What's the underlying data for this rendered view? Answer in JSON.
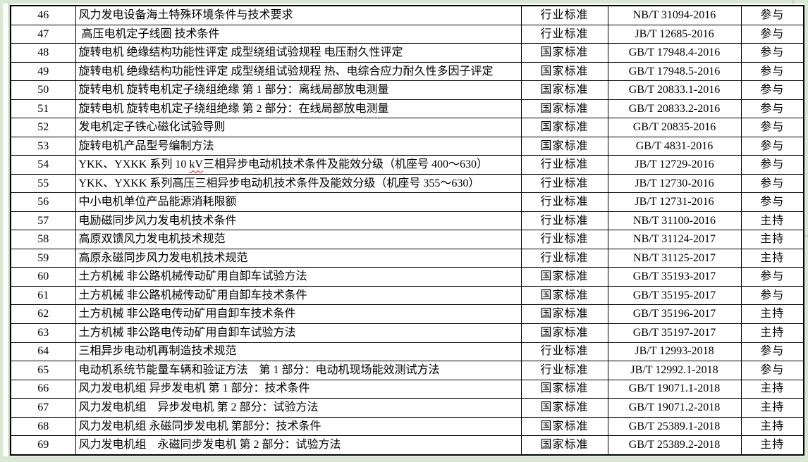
{
  "page": {
    "background_color": "#d9e8d2",
    "grid_line_color": "#b7d1aa",
    "table_border_color": "#000000",
    "spellcheck_underline_color": "#ff0000"
  },
  "table": {
    "rows": [
      {
        "index": "46",
        "name": "风力发电设备海土特殊环境条件与技术要求",
        "type": "行业标准",
        "code": "NB/T 31094-2016",
        "role": "参与"
      },
      {
        "index": "47",
        "name": " 高压电机定子线圈 技术条件",
        "type": "行业标准",
        "code": "JB/T 12685-2016",
        "role": "参与"
      },
      {
        "index": "48",
        "name": "旋转电机 绝缘结构功能性评定 成型绕组试验规程 电压耐久性评定",
        "type": "国家标准",
        "code": "GB/T 17948.4-2016",
        "role": "参与"
      },
      {
        "index": "49",
        "name": "旋转电机 绝缘结构功能性评定 成型绕组试验规程 热、电综合应力耐久性多因子评定",
        "type": "国家标准",
        "code": "GB/T 17948.5-2016",
        "role": "参与"
      },
      {
        "index": "50",
        "name": "旋转电机 旋转电机定子绕组绝缘 第 1 部分：离线局部放电测量",
        "type": "国家标准",
        "code": "GB/T 20833.1-2016",
        "role": "参与"
      },
      {
        "index": "51",
        "name": "旋转电机 旋转电机定子绕组绝缘 第 2 部分：在线局部放电测量",
        "type": "国家标准",
        "code": "GB/T 20833.2-2016",
        "role": "参与"
      },
      {
        "index": "52",
        "name": "发电机定子铁心磁化试验导则",
        "type": "国家标准",
        "code": "GB/T 20835-2016",
        "role": "参与"
      },
      {
        "index": "53",
        "name": "旋转电机产品型号编制方法",
        "type": "国家标准",
        "code": "GB/T 4831-2016",
        "role": "参与"
      },
      {
        "index": "54",
        "name": "YKK、YXKK 系列 10 kV三相异步电动机技术条件及能效分级（机座号 400～630）",
        "wavy": "kV",
        "type": "行业标准",
        "code": "JB/T 12729-2016",
        "role": "参与"
      },
      {
        "index": "55",
        "name": "YKK、YXKK 系列高压三相异步电动机技术条件及能效分级（机座号 355～630）",
        "type": "行业标准",
        "code": "JB/T 12730-2016",
        "role": "参与"
      },
      {
        "index": "56",
        "name": "中小电机单位产品能源消耗限额",
        "type": "行业标准",
        "code": "JB/T 12731-2016",
        "role": "参与"
      },
      {
        "index": "57",
        "name": "电励磁同步风力发电机技术条件",
        "type": "行业标准",
        "code": "NB/T 31100-2016",
        "role": "主持"
      },
      {
        "index": "58",
        "name": "高原双馈风力发电机技术规范",
        "type": "行业标准",
        "code": "NB/T 31124-2017",
        "role": "主持"
      },
      {
        "index": "59",
        "name": "高原永磁同步风力发电机技术规范",
        "type": "行业标准",
        "code": "NB/T 31125-2017",
        "role": "主持"
      },
      {
        "index": "60",
        "name": "土方机械 非公路机械传动矿用自卸车试验方法",
        "type": "国家标准",
        "code": "GB/T 35193-2017",
        "role": "参与"
      },
      {
        "index": "61",
        "name": "土方机械 非公路机械传动矿用自卸车技术条件",
        "type": "国家标准",
        "code": "GB/T 35195-2017",
        "role": "参与"
      },
      {
        "index": "62",
        "name": "土方机械 非公路电传动矿用自卸车技术条件",
        "type": "国家标准",
        "code": "GB/T 35196-2017",
        "role": "主持"
      },
      {
        "index": "63",
        "name": "土方机械 非公路电传动矿用自卸车试验方法",
        "type": "国家标准",
        "code": "GB/T 35197-2017",
        "role": "主持"
      },
      {
        "index": "64",
        "name": "三相异步电动机再制造技术规范",
        "type": "行业标准",
        "code": "JB/T 12993-2018",
        "role": "参与"
      },
      {
        "index": "65",
        "name": "电动机系统节能量车辆和验证方法　第 1 部分：电动机现场能效测试方法",
        "type": "行业标准",
        "code": "JB/T 12992.1-2018",
        "role": "参与"
      },
      {
        "index": "66",
        "name": "风力发电机组 异步发电机 第 1 部分：技术条件",
        "type": "国家标准",
        "code": "GB/T 19071.1-2018",
        "role": "主持"
      },
      {
        "index": "67",
        "name": "风力发电机组　异步发电机 第 2 部分：试验方法",
        "type": "国家标准",
        "code": "GB/T 19071.2-2018",
        "role": "主持"
      },
      {
        "index": "68",
        "name": "风力发电机组 永磁同步发电机 第部分：技术条件",
        "type": "国家标准",
        "code": "GB/T 25389.1-2018",
        "role": "主持"
      },
      {
        "index": "69",
        "name": "风力发电机组　永磁同步发电机 第 2 部分：试验方法",
        "type": "国家标准",
        "code": "GB/T 25389.2-2018",
        "role": "主持"
      }
    ]
  }
}
